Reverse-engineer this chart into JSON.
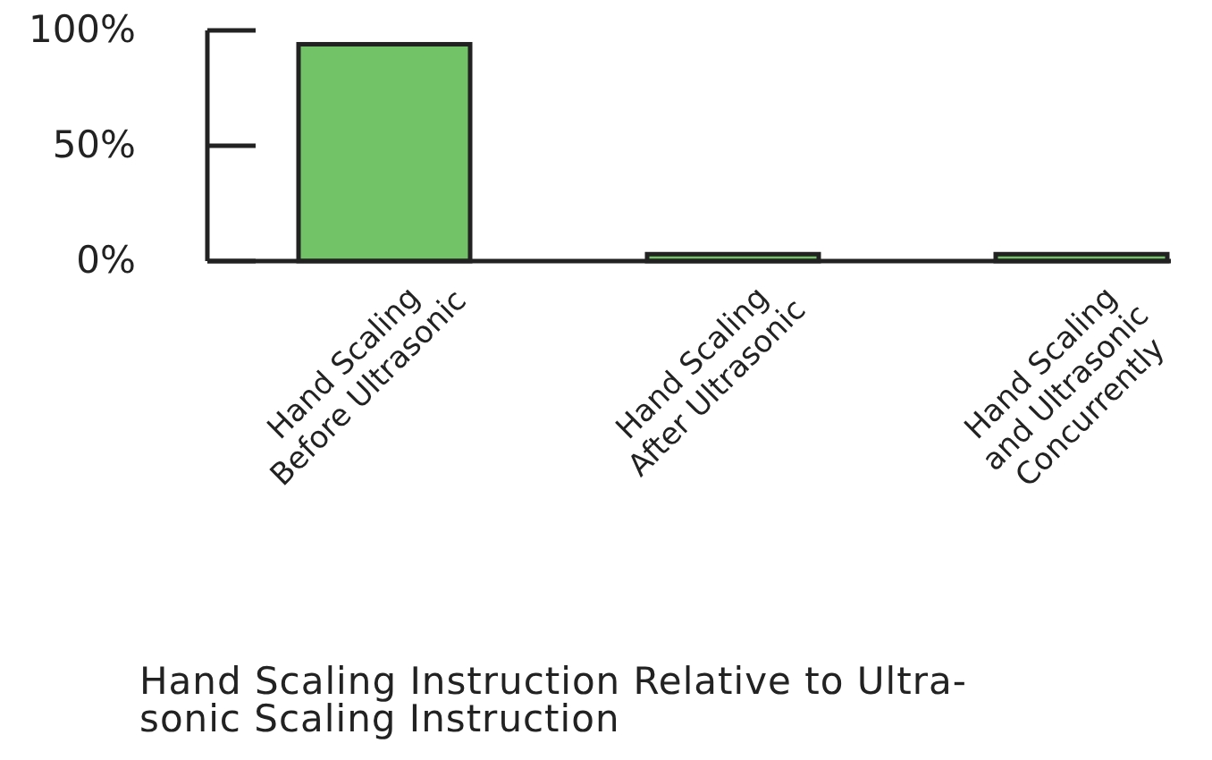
{
  "chart_data": {
    "type": "bar",
    "xlabel": "Hand Scaling Instruction Relative to Ultra-\nsonic Scaling Instruction",
    "categories": [
      "Hand Scaling\nBefore Ultrasonic",
      "Hand Scaling\nAfter Ultrasonic",
      "Hand Scaling\nand Ultrasonic\nConcurrently"
    ],
    "values": [
      94,
      3,
      3
    ],
    "color": "#72c367",
    "ylim": [
      0,
      100
    ],
    "yticks": [
      {
        "value": 0,
        "label": "0%"
      },
      {
        "value": 50,
        "label": "50%"
      },
      {
        "value": 100,
        "label": "100%"
      }
    ],
    "grid": false
  }
}
